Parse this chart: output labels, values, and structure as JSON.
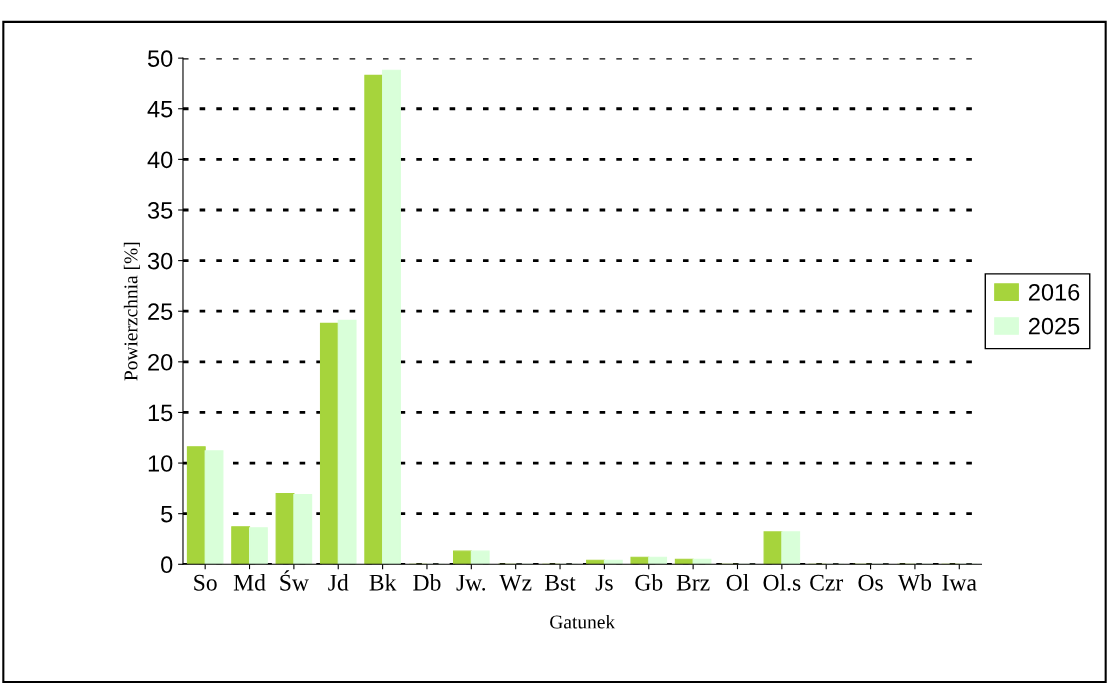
{
  "chart_data": {
    "type": "bar",
    "xlabel": "Gatunek",
    "ylabel": "Powierzchnia [%]",
    "categories": [
      "So",
      "Md",
      "Św",
      "Jd",
      "Bk",
      "Db",
      "Jw.",
      "Wz",
      "Bst",
      "Js",
      "Gb",
      "Brz",
      "Ol",
      "Ol.s",
      "Czr",
      "Os",
      "Wb",
      "Iwa"
    ],
    "series": [
      {
        "name": "2016",
        "color": "#a6d43c",
        "values": [
          11.6,
          3.7,
          7.0,
          23.8,
          48.3,
          0,
          1.3,
          0,
          0,
          0.4,
          0.7,
          0.5,
          0,
          3.2,
          0,
          0,
          0,
          0
        ]
      },
      {
        "name": "2025",
        "color": "#d9ffd9",
        "values": [
          11.2,
          3.6,
          6.9,
          24.1,
          48.8,
          0,
          1.3,
          0,
          0,
          0.4,
          0.7,
          0.5,
          0,
          3.2,
          0,
          0,
          0,
          0
        ]
      }
    ],
    "ylim": [
      0,
      50
    ],
    "yticks": [
      0,
      5,
      10,
      15,
      20,
      25,
      30,
      35,
      40,
      45,
      50
    ],
    "grid": "y",
    "legend": "right",
    "line_style": "dotted"
  }
}
